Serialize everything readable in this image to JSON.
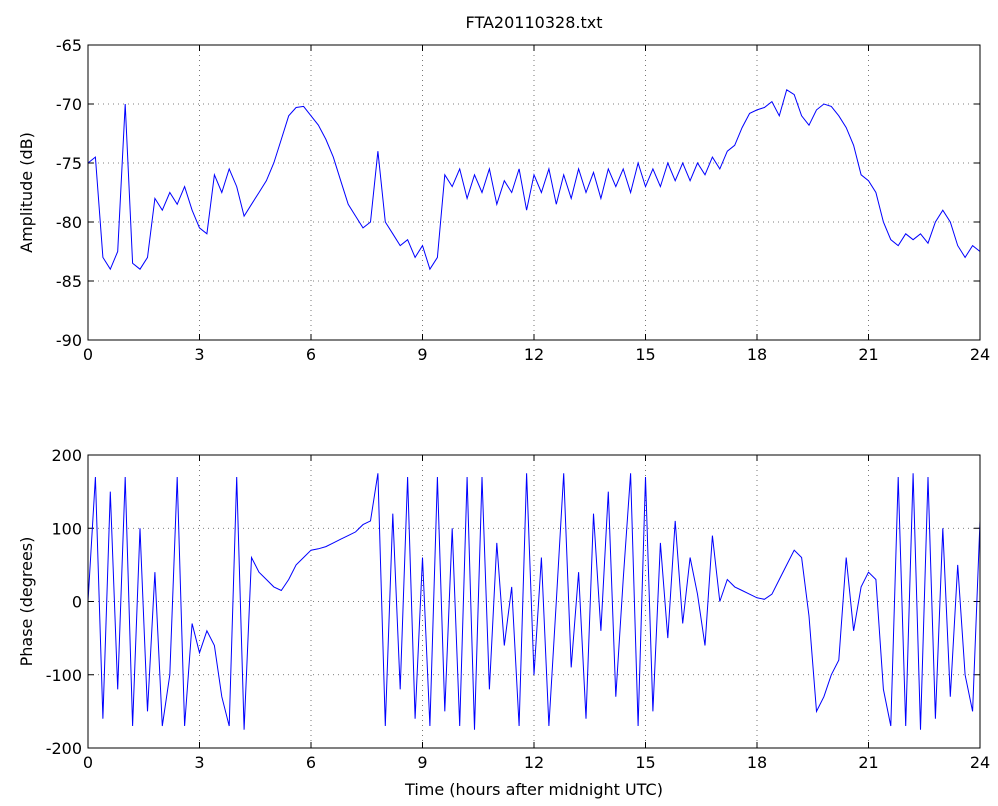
{
  "chart_data": [
    {
      "type": "line",
      "title": "FTA20110328.txt",
      "ylabel": "Amplitude (dB)",
      "color": "#0000ff",
      "grid": true,
      "xlim": [
        0,
        24
      ],
      "xticks": [
        0,
        3,
        6,
        9,
        12,
        15,
        18,
        21,
        24
      ],
      "ylim": [
        -90,
        -65
      ],
      "yticks": [
        -90,
        -85,
        -80,
        -75,
        -70,
        -65
      ],
      "x": [
        0,
        0.2,
        0.4,
        0.6,
        0.8,
        1,
        1.2,
        1.4,
        1.6,
        1.8,
        2,
        2.2,
        2.4,
        2.6,
        2.8,
        3,
        3.2,
        3.4,
        3.6,
        3.8,
        4,
        4.2,
        4.4,
        4.6,
        4.8,
        5,
        5.2,
        5.4,
        5.6,
        5.8,
        6,
        6.2,
        6.4,
        6.6,
        6.8,
        7,
        7.2,
        7.4,
        7.6,
        7.8,
        8,
        8.2,
        8.4,
        8.6,
        8.8,
        9,
        9.2,
        9.4,
        9.6,
        9.8,
        10,
        10.2,
        10.4,
        10.6,
        10.8,
        11,
        11.2,
        11.4,
        11.6,
        11.8,
        12,
        12.2,
        12.4,
        12.6,
        12.8,
        13,
        13.2,
        13.4,
        13.6,
        13.8,
        14,
        14.2,
        14.4,
        14.6,
        14.8,
        15,
        15.2,
        15.4,
        15.6,
        15.8,
        16,
        16.2,
        16.4,
        16.6,
        16.8,
        17,
        17.2,
        17.4,
        17.6,
        17.8,
        18,
        18.2,
        18.4,
        18.6,
        18.8,
        19,
        19.2,
        19.4,
        19.6,
        19.8,
        20,
        20.2,
        20.4,
        20.6,
        20.8,
        21,
        21.2,
        21.4,
        21.6,
        21.8,
        22,
        22.2,
        22.4,
        22.6,
        22.8,
        23,
        23.2,
        23.4,
        23.6,
        23.8,
        24
      ],
      "values": [
        -75,
        -74.5,
        -83,
        -84,
        -82.5,
        -70,
        -83.5,
        -84,
        -83,
        -78,
        -79,
        -77.5,
        -78.5,
        -77,
        -79,
        -80.5,
        -81,
        -76,
        -77.5,
        -75.5,
        -77,
        -79.5,
        -78.5,
        -77.5,
        -76.5,
        -75,
        -73,
        -71,
        -70.3,
        -70.2,
        -71,
        -71.8,
        -73,
        -74.5,
        -76.5,
        -78.5,
        -79.5,
        -80.5,
        -80,
        -74,
        -80,
        -81,
        -82,
        -81.5,
        -83,
        -82,
        -84,
        -83,
        -76,
        -77,
        -75.5,
        -78,
        -76,
        -77.5,
        -75.5,
        -78.5,
        -76.5,
        -77.5,
        -75.5,
        -79,
        -76,
        -77.5,
        -75.5,
        -78.5,
        -76,
        -78,
        -75.5,
        -77.5,
        -75.8,
        -78,
        -75.5,
        -77,
        -75.5,
        -77.5,
        -75,
        -77,
        -75.5,
        -77,
        -75,
        -76.5,
        -75,
        -76.5,
        -75,
        -76,
        -74.5,
        -75.5,
        -74,
        -73.5,
        -72,
        -70.8,
        -70.5,
        -70.3,
        -69.8,
        -71,
        -68.8,
        -69.2,
        -71,
        -71.8,
        -70.5,
        -70,
        -70.2,
        -71,
        -72,
        -73.5,
        -76,
        -76.5,
        -77.5,
        -80,
        -81.5,
        -82,
        -81,
        -81.5,
        -81,
        -81.8,
        -80,
        -79,
        -80,
        -82,
        -83,
        -82,
        -82.5
      ]
    },
    {
      "type": "line",
      "ylabel": "Phase (degrees)",
      "xlabel": "Time (hours after midnight UTC)",
      "color": "#0000ff",
      "grid": true,
      "xlim": [
        0,
        24
      ],
      "xticks": [
        0,
        3,
        6,
        9,
        12,
        15,
        18,
        21,
        24
      ],
      "ylim": [
        -200,
        200
      ],
      "yticks": [
        -200,
        -100,
        0,
        100,
        200
      ],
      "x": [
        0,
        0.2,
        0.4,
        0.6,
        0.8,
        1,
        1.2,
        1.4,
        1.6,
        1.8,
        2,
        2.2,
        2.4,
        2.6,
        2.8,
        3,
        3.2,
        3.4,
        3.6,
        3.8,
        4,
        4.2,
        4.4,
        4.6,
        4.8,
        5,
        5.2,
        5.4,
        5.6,
        5.8,
        6,
        6.2,
        6.4,
        6.6,
        6.8,
        7,
        7.2,
        7.4,
        7.6,
        7.8,
        8,
        8.2,
        8.4,
        8.6,
        8.8,
        9,
        9.2,
        9.4,
        9.6,
        9.8,
        10,
        10.2,
        10.4,
        10.6,
        10.8,
        11,
        11.2,
        11.4,
        11.6,
        11.8,
        12,
        12.2,
        12.4,
        12.6,
        12.8,
        13,
        13.2,
        13.4,
        13.6,
        13.8,
        14,
        14.2,
        14.4,
        14.6,
        14.8,
        15,
        15.2,
        15.4,
        15.6,
        15.8,
        16,
        16.2,
        16.4,
        16.6,
        16.8,
        17,
        17.2,
        17.4,
        17.6,
        17.8,
        18,
        18.2,
        18.4,
        18.6,
        18.8,
        19,
        19.2,
        19.4,
        19.6,
        19.8,
        20,
        20.2,
        20.4,
        20.6,
        20.8,
        21,
        21.2,
        21.4,
        21.6,
        21.8,
        22,
        22.2,
        22.4,
        22.6,
        22.8,
        23,
        23.2,
        23.4,
        23.6,
        23.8,
        24
      ],
      "values": [
        0,
        170,
        -160,
        150,
        -120,
        170,
        -170,
        100,
        -150,
        40,
        -170,
        -100,
        170,
        -170,
        -30,
        -70,
        -40,
        -60,
        -130,
        -170,
        170,
        -175,
        60,
        40,
        30,
        20,
        15,
        30,
        50,
        60,
        70,
        72,
        75,
        80,
        85,
        90,
        95,
        105,
        110,
        175,
        -170,
        120,
        -120,
        170,
        -160,
        60,
        -170,
        170,
        -150,
        100,
        -170,
        170,
        -175,
        170,
        -120,
        80,
        -60,
        20,
        -170,
        175,
        -100,
        60,
        -170,
        0,
        175,
        -90,
        40,
        -160,
        120,
        -40,
        150,
        -130,
        30,
        175,
        -170,
        170,
        -150,
        80,
        -50,
        110,
        -30,
        60,
        10,
        -60,
        90,
        0,
        30,
        20,
        15,
        10,
        5,
        3,
        10,
        30,
        50,
        70,
        60,
        -20,
        -150,
        -130,
        -100,
        -80,
        60,
        -40,
        20,
        40,
        30,
        -120,
        -170,
        170,
        -170,
        175,
        -175,
        170,
        -160,
        100,
        -130,
        50,
        -100,
        -150,
        110
      ]
    }
  ]
}
